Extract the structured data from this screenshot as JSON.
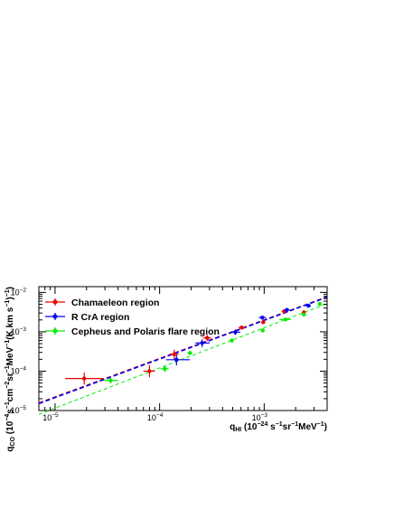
{
  "chart_data": {
    "type": "scatter",
    "x_scale": "log",
    "y_scale": "log",
    "xlim": [
      7e-06,
      0.004
    ],
    "ylim": [
      1e-05,
      0.014
    ],
    "grid": false,
    "legend_position": "top-left",
    "x_tick_labels": [
      {
        "base": "10",
        "exp": "−5",
        "value": 1e-05
      },
      {
        "base": "10",
        "exp": "−4",
        "value": 0.0001
      },
      {
        "base": "10",
        "exp": "−3",
        "value": 0.001
      }
    ],
    "y_tick_labels": [
      {
        "base": "10",
        "exp": "−5",
        "value": 1e-05
      },
      {
        "base": "10",
        "exp": "−4",
        "value": 0.0001
      },
      {
        "base": "10",
        "exp": "−3",
        "value": 0.001
      },
      {
        "base": "10",
        "exp": "−2",
        "value": 0.01
      }
    ],
    "xlabel": {
      "q": "q",
      "sub": "HI",
      "a": " (10",
      "e1": "−24",
      "b": " s",
      "e2": "−1",
      "c": "sr",
      "e3": "−1",
      "d": "MeV",
      "e4": "−1",
      "f": ")"
    },
    "ylabel": {
      "q": "q",
      "sub": "CO",
      "a": " (10",
      "e1": "−4",
      "b": "s",
      "e2": "−1",
      "c": "cm",
      "e3": "−2",
      "d": "sr",
      "e4": "−1",
      "e": "MeV",
      "e5": "−1",
      "f": "(K km s",
      "e6": "−1",
      "g": ")",
      "e7": "−1",
      "h": ")"
    },
    "series": [
      {
        "name": "Chamaeleon region",
        "color": "#ee0000",
        "points": [
          {
            "x": 1.9e-05,
            "y": 6.5e-05,
            "xlo": 1.25e-05,
            "xhi": 2.9e-05,
            "ylo": 4.6e-05,
            "yhi": 9.2e-05
          },
          {
            "x": 8e-05,
            "y": 0.0001,
            "xlo": 7e-05,
            "xhi": 9e-05,
            "ylo": 7e-05,
            "yhi": 0.000142
          },
          {
            "x": 0.000138,
            "y": 0.00027,
            "xlo": 0.000125,
            "xhi": 0.000152,
            "ylo": 0.0002,
            "yhi": 0.00035
          },
          {
            "x": 0.000285,
            "y": 0.0007,
            "xlo": 0.00026,
            "xhi": 0.00031,
            "ylo": 0.00058,
            "yhi": 0.00083
          },
          {
            "x": 0.00061,
            "y": 0.00128,
            "xlo": 0.00057,
            "xhi": 0.00065,
            "ylo": 0.00115,
            "yhi": 0.00142
          },
          {
            "x": 0.00098,
            "y": 0.00175,
            "xlo": 0.00094,
            "xhi": 0.00102,
            "ylo": 0.00158,
            "yhi": 0.00192
          },
          {
            "x": 0.00155,
            "y": 0.0033,
            "xlo": 0.00147,
            "xhi": 0.00163,
            "ylo": 0.003,
            "yhi": 0.0036
          },
          {
            "x": 0.0024,
            "y": 0.0031,
            "xlo": 0.0023,
            "xhi": 0.0025,
            "ylo": 0.00275,
            "yhi": 0.00345
          }
        ]
      },
      {
        "name": "R CrA region",
        "color": "#0000ee",
        "points": [
          {
            "x": 0.000145,
            "y": 0.000195,
            "xlo": 0.000115,
            "xhi": 0.000195,
            "ylo": 0.00014,
            "yhi": 0.00026
          },
          {
            "x": 0.000255,
            "y": 0.00052,
            "xlo": 0.00022,
            "xhi": 0.0003,
            "ylo": 0.00041,
            "yhi": 0.00064
          },
          {
            "x": 0.00053,
            "y": 0.00098,
            "xlo": 0.00048,
            "xhi": 0.00059,
            "ylo": 0.00083,
            "yhi": 0.00114
          },
          {
            "x": 0.00096,
            "y": 0.0023,
            "xlo": 0.00089,
            "xhi": 0.00104,
            "ylo": 0.00205,
            "yhi": 0.00255
          },
          {
            "x": 0.00165,
            "y": 0.0036,
            "xlo": 0.00155,
            "xhi": 0.00175,
            "ylo": 0.00325,
            "yhi": 0.00395
          },
          {
            "x": 0.00265,
            "y": 0.0046,
            "xlo": 0.0025,
            "xhi": 0.0028,
            "ylo": 0.0042,
            "yhi": 0.005
          }
        ]
      },
      {
        "name": "Cepheus and Polaris flare region",
        "color": "#00ee00",
        "points": [
          {
            "x": 3.4e-05,
            "y": 5.8e-05,
            "xlo": 2.9e-05,
            "xhi": 4e-05,
            "ylo": 4.9e-05,
            "yhi": 6.8e-05
          },
          {
            "x": 0.000112,
            "y": 0.000115,
            "xlo": 0.000102,
            "xhi": 0.000122,
            "ylo": 9.5e-05,
            "yhi": 0.000135
          },
          {
            "x": 0.000195,
            "y": 0.00029,
            "xlo": 0.000185,
            "xhi": 0.000205,
            "ylo": 0.00026,
            "yhi": 0.00032
          },
          {
            "x": 0.00049,
            "y": 0.0006,
            "xlo": 0.00047,
            "xhi": 0.00051,
            "ylo": 0.00055,
            "yhi": 0.00065
          },
          {
            "x": 0.00097,
            "y": 0.00108,
            "xlo": 0.00093,
            "xhi": 0.00101,
            "ylo": 0.00098,
            "yhi": 0.00118
          },
          {
            "x": 0.0016,
            "y": 0.00205,
            "xlo": 0.0014,
            "xhi": 0.0018,
            "ylo": 0.00192,
            "yhi": 0.00218
          },
          {
            "x": 0.0024,
            "y": 0.00275,
            "xlo": 0.0023,
            "xhi": 0.0025,
            "ylo": 0.0025,
            "yhi": 0.003
          },
          {
            "x": 0.0034,
            "y": 0.0051,
            "xlo": 0.0033,
            "xhi": 0.0035,
            "ylo": 0.0047,
            "yhi": 0.0055
          }
        ]
      }
    ],
    "fit_lines": [
      {
        "color": "#ee0000",
        "points": [
          [
            7e-06,
            1.55e-05
          ],
          [
            0.004,
            0.0077
          ]
        ]
      },
      {
        "color": "#0000ee",
        "points": [
          [
            7e-06,
            1.5e-05
          ],
          [
            0.004,
            0.0076
          ]
        ]
      },
      {
        "color": "#00ee00",
        "points": [
          [
            7e-06,
            8e-06
          ],
          [
            0.004,
            0.0052
          ]
        ]
      }
    ]
  }
}
